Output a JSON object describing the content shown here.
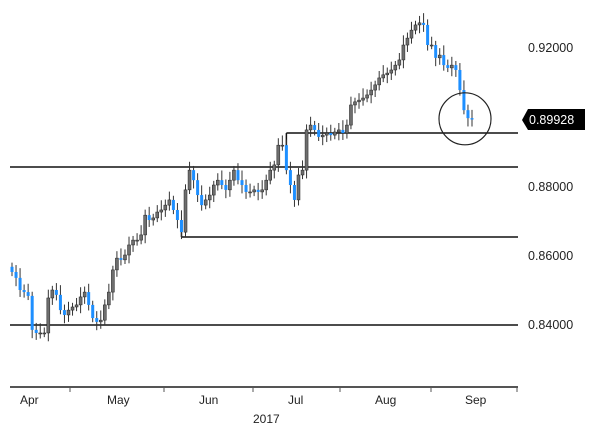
{
  "chart_data": {
    "type": "candlestick",
    "title": "",
    "xlabel": "2017",
    "ylabel": "",
    "ylim": [
      0.8195,
      0.9345
    ],
    "x_tick_labels": [
      "Apr",
      "May",
      "Jun",
      "Jul",
      "Aug",
      "Sep"
    ],
    "year_label": "2017",
    "y_tick_labels": [
      {
        "value": 0.92,
        "label": "0.92000"
      },
      {
        "value": 0.88,
        "label": "0.88000"
      },
      {
        "value": 0.86,
        "label": "0.86000"
      },
      {
        "value": 0.84,
        "label": "0.84000"
      }
    ],
    "last_price": {
      "value": 0.89928,
      "label": "0.89928"
    },
    "horizontal_levels": [
      {
        "value": 0.8954,
        "from_index": 68
      },
      {
        "value": 0.8856,
        "from_index": 0
      },
      {
        "value": 0.8654,
        "from_index": 42
      },
      {
        "value": 0.84,
        "from_index": 0
      }
    ],
    "highlight_circle": {
      "center_index": 114,
      "value": 0.8995
    },
    "note": "daily closes; each candle opens at the previous close; blue = down day, grey = up day",
    "closes": [
      0.8553,
      0.8536,
      0.8501,
      0.8495,
      0.8484,
      0.8386,
      0.8377,
      0.8377,
      0.8377,
      0.8478,
      0.8501,
      0.8487,
      0.8443,
      0.8429,
      0.8443,
      0.8452,
      0.8458,
      0.8481,
      0.8495,
      0.8458,
      0.842,
      0.8409,
      0.8414,
      0.8458,
      0.8495,
      0.8559,
      0.8593,
      0.8588,
      0.8602,
      0.8631,
      0.8645,
      0.8645,
      0.866,
      0.8717,
      0.8703,
      0.8709,
      0.8726,
      0.8732,
      0.8746,
      0.8761,
      0.8732,
      0.8703,
      0.8668,
      0.879,
      0.8847,
      0.8818,
      0.8775,
      0.8746,
      0.8761,
      0.8775,
      0.8804,
      0.8818,
      0.8804,
      0.879,
      0.8818,
      0.8847,
      0.8818,
      0.8804,
      0.8784,
      0.8784,
      0.879,
      0.8784,
      0.879,
      0.8818,
      0.8847,
      0.8862,
      0.8919,
      0.8919,
      0.8847,
      0.8804,
      0.8761,
      0.8833,
      0.8847,
      0.8963,
      0.8977,
      0.8963,
      0.8943,
      0.8948,
      0.8954,
      0.8948,
      0.8957,
      0.8963,
      0.8954,
      0.8977,
      0.9035,
      0.9044,
      0.9049,
      0.9055,
      0.9064,
      0.9078,
      0.9093,
      0.9113,
      0.9122,
      0.9127,
      0.9136,
      0.915,
      0.9165,
      0.9208,
      0.9228,
      0.9251,
      0.9266,
      0.9272,
      0.9266,
      0.9208,
      0.9208,
      0.9171,
      0.9179,
      0.915,
      0.9142,
      0.915,
      0.9136,
      0.9078,
      0.902,
      0.8997,
      0.8993
    ],
    "colors": {
      "up": "#6e6e6e",
      "down": "#1e8fff",
      "line": "#111111",
      "tag_bg": "#000000",
      "tag_text": "#ffffff"
    }
  }
}
